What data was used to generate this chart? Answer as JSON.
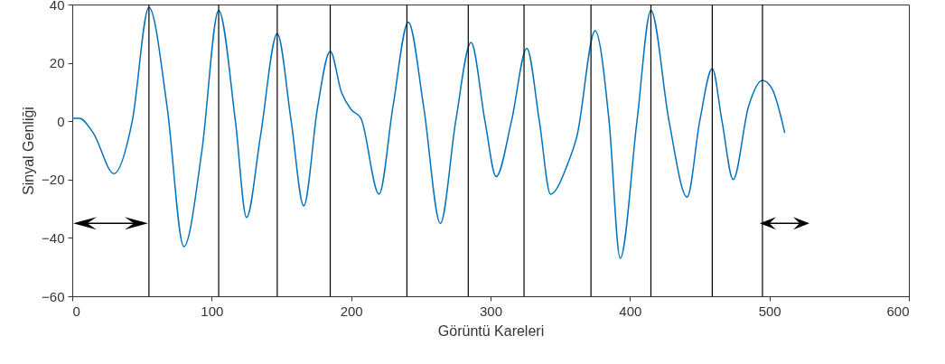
{
  "chart_data": {
    "type": "line",
    "xlabel": "Görüntü Kareleri",
    "ylabel": "Sinyal Genliği",
    "x": [
      0,
      5,
      15,
      30,
      43,
      55,
      68,
      80,
      93,
      105,
      117,
      125,
      135,
      147,
      157,
      166,
      176,
      185,
      193,
      200,
      207,
      220,
      230,
      241,
      252,
      264,
      275,
      286,
      296,
      304,
      315,
      326,
      335,
      343,
      355,
      362,
      375,
      385,
      393,
      405,
      415,
      428,
      441,
      450,
      459,
      466,
      474,
      485,
      495,
      502,
      511
    ],
    "series": [
      {
        "color": "#0072bd",
        "values": [
          1,
          1,
          -4,
          -18,
          0,
          39,
          5,
          -43,
          -10,
          38,
          0,
          -33,
          -5,
          30,
          0,
          -29,
          5,
          24,
          10,
          4,
          1,
          -25,
          5,
          34,
          5,
          -35,
          0,
          27,
          0,
          -19,
          0,
          25,
          0,
          -25,
          -15,
          -5,
          31,
          0,
          -47,
          0,
          38,
          0,
          -26,
          0,
          18,
          0,
          -20,
          5,
          14,
          11,
          -4
        ]
      }
    ],
    "xlim": [
      0,
      600
    ],
    "xticks": [
      0,
      100,
      200,
      300,
      400,
      500,
      600
    ],
    "ylim": [
      -60,
      40
    ],
    "yticks": [
      -60,
      -40,
      -20,
      0,
      20,
      40
    ],
    "grid": false,
    "marker": "none",
    "line_style": "solid",
    "ref_lines": [
      {
        "axis": "x",
        "value": 55,
        "color": "#000000"
      },
      {
        "axis": "x",
        "value": 105,
        "color": "#000000"
      },
      {
        "axis": "x",
        "value": 147,
        "color": "#000000"
      },
      {
        "axis": "x",
        "value": 185,
        "color": "#000000"
      },
      {
        "axis": "x",
        "value": 240,
        "color": "#000000"
      },
      {
        "axis": "x",
        "value": 284,
        "color": "#000000"
      },
      {
        "axis": "x",
        "value": 324,
        "color": "#000000"
      },
      {
        "axis": "x",
        "value": 372,
        "color": "#000000"
      },
      {
        "axis": "x",
        "value": 415,
        "color": "#000000"
      },
      {
        "axis": "x",
        "value": 459,
        "color": "#000000"
      },
      {
        "axis": "x",
        "value": 495,
        "color": "#000000"
      }
    ]
  }
}
